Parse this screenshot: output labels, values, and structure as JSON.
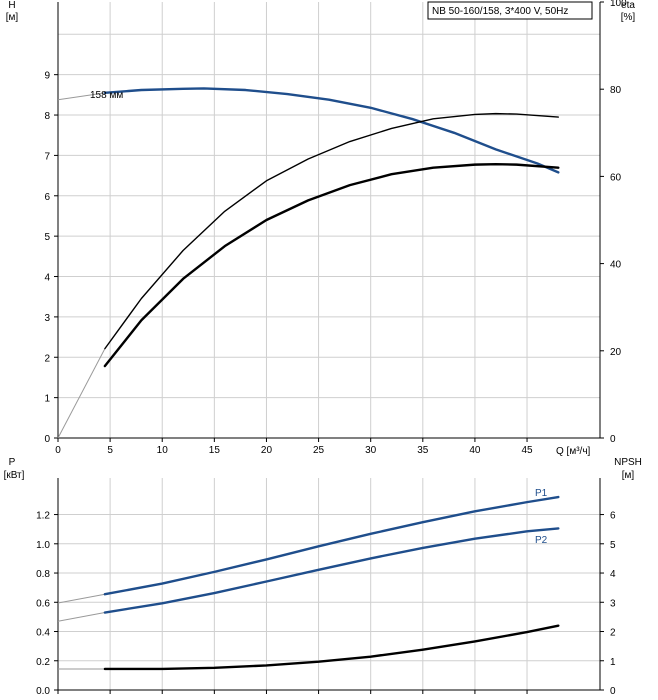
{
  "chart_data": [
    {
      "type": "line",
      "title": "NB 50-160/158, 3*400 V, 50Hz",
      "xlabel": "Q [м³/ч]",
      "ylabel": "H [м]",
      "ylabel_top": "H",
      "ylabel_unit": "[м]",
      "y2label_top": "eta",
      "y2label_unit": "[%]",
      "xlim": [
        0,
        52
      ],
      "ylim": [
        0,
        10.8
      ],
      "y2lim": [
        0,
        100
      ],
      "x_ticks": [
        0,
        5,
        10,
        15,
        20,
        25,
        30,
        35,
        40,
        45
      ],
      "y_ticks": [
        0,
        1,
        2,
        3,
        4,
        5,
        6,
        7,
        8,
        9
      ],
      "y2_ticks": [
        0,
        20,
        40,
        60,
        80,
        100
      ],
      "grid": true,
      "series": [
        {
          "name": "158 мм",
          "color": "#1f4e8c",
          "axis": "left",
          "x": [
            4.5,
            8,
            12,
            14,
            18,
            22,
            26,
            30,
            34,
            38,
            42,
            46,
            48
          ],
          "y": [
            8.55,
            8.62,
            8.65,
            8.66,
            8.62,
            8.52,
            8.38,
            8.18,
            7.9,
            7.56,
            7.15,
            6.8,
            6.58
          ],
          "lead_in": {
            "x": [
              0,
              4.5
            ],
            "y": [
              8.38,
              8.55
            ]
          }
        },
        {
          "color": "#000000",
          "axis": "right",
          "x": [
            4.5,
            8,
            12,
            16,
            20,
            24,
            28,
            32,
            36,
            40,
            42,
            44,
            48
          ],
          "y": [
            20.5,
            32,
            43,
            52,
            59,
            64,
            68,
            71,
            73.2,
            74.2,
            74.4,
            74.3,
            73.6
          ],
          "lead_in": {
            "x": [
              0,
              4.5
            ],
            "y": [
              0,
              20.5
            ]
          }
        },
        {
          "color": "#000000",
          "axis": "right",
          "x": [
            4.5,
            8,
            12,
            16,
            20,
            24,
            28,
            32,
            36,
            40,
            42,
            44,
            48
          ],
          "y": [
            16.5,
            27,
            36.5,
            44,
            50,
            54.5,
            58,
            60.5,
            62,
            62.7,
            62.8,
            62.7,
            62
          ]
        }
      ]
    },
    {
      "type": "line",
      "ylabel_top": "P",
      "ylabel_unit": "[кВт]",
      "y2label_top": "NPSH",
      "y2label_unit": "[м]",
      "xlim": [
        0,
        52
      ],
      "ylim": [
        0,
        1.45
      ],
      "y2lim": [
        0,
        7.25
      ],
      "y_ticks": [
        0.0,
        0.2,
        0.4,
        0.6,
        0.8,
        1.0,
        1.2
      ],
      "y_tick_labels": [
        "0.0",
        "0.2",
        "0.4",
        "0.6",
        "0.8",
        "1.0",
        "1.2"
      ],
      "y2_ticks": [
        0,
        1,
        2,
        3,
        4,
        5,
        6
      ],
      "grid": true,
      "series": [
        {
          "name": "P1",
          "color": "#1f4e8c",
          "axis": "left",
          "x": [
            4.5,
            10,
            15,
            20,
            25,
            30,
            35,
            40,
            45,
            48
          ],
          "y": [
            0.655,
            0.728,
            0.808,
            0.893,
            0.983,
            1.068,
            1.148,
            1.222,
            1.285,
            1.32
          ],
          "lead_in": {
            "x": [
              0,
              4.5
            ],
            "y": [
              0.595,
              0.655
            ]
          }
        },
        {
          "name": "P2",
          "color": "#1f4e8c",
          "axis": "left",
          "x": [
            4.5,
            10,
            15,
            20,
            25,
            30,
            35,
            40,
            45,
            48
          ],
          "y": [
            0.53,
            0.593,
            0.663,
            0.742,
            0.822,
            0.9,
            0.972,
            1.035,
            1.085,
            1.105
          ],
          "lead_in": {
            "x": [
              0,
              4.5
            ],
            "y": [
              0.47,
              0.53
            ]
          }
        },
        {
          "color": "#000000",
          "axis": "right",
          "x": [
            4.5,
            10,
            15,
            20,
            25,
            30,
            35,
            40,
            45,
            48
          ],
          "y": [
            0.72,
            0.72,
            0.76,
            0.84,
            0.97,
            1.14,
            1.38,
            1.66,
            1.98,
            2.2
          ],
          "lead_in": {
            "x": [
              0,
              4.5
            ],
            "y": [
              0.72,
              0.72
            ]
          }
        }
      ]
    }
  ]
}
